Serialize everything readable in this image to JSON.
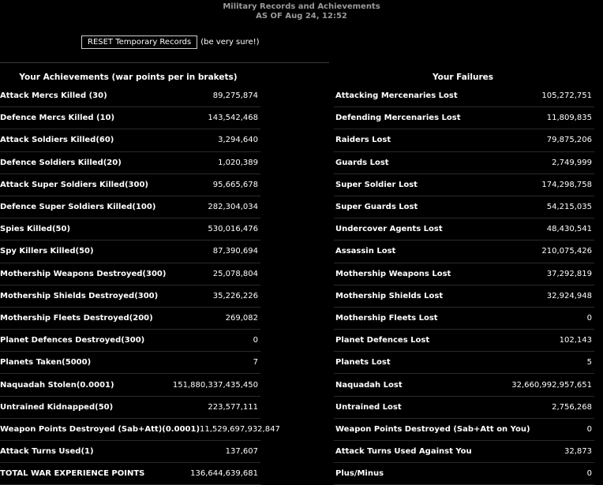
{
  "header": {
    "title": "Military Records and Achievements",
    "date": "AS OF Aug 24, 12:52"
  },
  "reset": {
    "button_label": "RESET Temporary Records",
    "note": "(be very sure!)"
  },
  "achievements": {
    "heading": "Your Achievements (war points per in brakets)",
    "rows": [
      {
        "label": "Attack Mercs Killed (30)",
        "value": "89,275,874"
      },
      {
        "label": "Defence Mercs Killed (10)",
        "value": "143,542,468"
      },
      {
        "label": "Attack Soldiers Killed(60)",
        "value": "3,294,640"
      },
      {
        "label": "Defence Soldiers Killed(20)",
        "value": "1,020,389"
      },
      {
        "label": "Attack Super Soldiers Killed(300)",
        "value": "95,665,678"
      },
      {
        "label": "Defence Super Soldiers Killed(100)",
        "value": "282,304,034"
      },
      {
        "label": "Spies Killed(50)",
        "value": "530,016,476"
      },
      {
        "label": "Spy Killers Killed(50)",
        "value": "87,390,694"
      },
      {
        "label": "Mothership Weapons Destroyed(300)",
        "value": "25,078,804"
      },
      {
        "label": "Mothership Shields Destroyed(300)",
        "value": "35,226,226"
      },
      {
        "label": "Mothership Fleets Destroyed(200)",
        "value": "269,082"
      },
      {
        "label": "Planet Defences Destroyed(300)",
        "value": "0"
      },
      {
        "label": "Planets Taken(5000)",
        "value": "7"
      },
      {
        "label": "Naquadah Stolen(0.0001)",
        "value": "151,880,337,435,450"
      },
      {
        "label": "Untrained Kidnapped(50)",
        "value": "223,577,111"
      },
      {
        "label": "Weapon Points Destroyed (Sab+Att)(0.0001)",
        "value": "11,529,697,932,847"
      },
      {
        "label": "Attack Turns Used(1)",
        "value": "137,607"
      },
      {
        "label": "TOTAL WAR EXPERIENCE POINTS",
        "value": "136,644,639,681"
      }
    ]
  },
  "failures": {
    "heading": "Your Failures",
    "rows": [
      {
        "label": "Attacking Mercenaries Lost",
        "value": "105,272,751"
      },
      {
        "label": "Defending Mercenaries Lost",
        "value": "11,809,835"
      },
      {
        "label": "Raiders Lost",
        "value": "79,875,206"
      },
      {
        "label": "Guards Lost",
        "value": "2,749,999"
      },
      {
        "label": "Super Soldier Lost",
        "value": "174,298,758"
      },
      {
        "label": "Super Guards Lost",
        "value": "54,215,035"
      },
      {
        "label": "Undercover Agents Lost",
        "value": "48,430,541"
      },
      {
        "label": "Assassin Lost",
        "value": "210,075,426"
      },
      {
        "label": "Mothership Weapons Lost",
        "value": "37,292,819"
      },
      {
        "label": "Mothership Shields Lost",
        "value": "32,924,948"
      },
      {
        "label": "Mothership Fleets Lost",
        "value": "0"
      },
      {
        "label": "Planet Defences Lost",
        "value": "102,143"
      },
      {
        "label": "Planets Lost",
        "value": "5"
      },
      {
        "label": "Naquadah Lost",
        "value": "32,660,992,957,651"
      },
      {
        "label": "Untrained Lost",
        "value": "2,756,268"
      },
      {
        "label": "Weapon Points Destroyed (Sab+Att on You)",
        "value": "0"
      },
      {
        "label": "Attack Turns Used Against You",
        "value": "32,873"
      },
      {
        "label": "Plus/Minus",
        "value": "0"
      }
    ]
  }
}
